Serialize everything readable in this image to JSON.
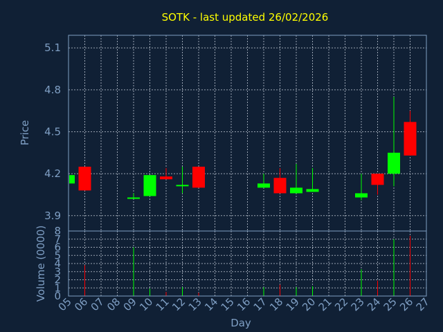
{
  "chart_data": {
    "type": "candlestick",
    "title": "SOTK - last updated 26/02/2026",
    "xlabel": "Day",
    "price_panel": {
      "ylabel": "Price",
      "ylim": [
        3.79,
        5.19
      ],
      "yticks": [
        "3.9",
        "4.2",
        "4.5",
        "4.8",
        "5.1"
      ]
    },
    "volume_panel": {
      "ylabel": "Volume (0000)",
      "ylim": [
        0,
        8
      ],
      "yticks": [
        "0",
        "1",
        "2",
        "3",
        "4",
        "5",
        "6",
        "7",
        "8"
      ]
    },
    "x_ticks": [
      "05",
      "06",
      "07",
      "08",
      "09",
      "10",
      "11",
      "12",
      "13",
      "14",
      "15",
      "16",
      "17",
      "18",
      "19",
      "20",
      "21",
      "22",
      "23",
      "24",
      "25",
      "26",
      "27"
    ],
    "grid": true,
    "colors": {
      "up": "#00ff00",
      "down": "#ff0000",
      "title": "#ffff00",
      "axis_text": "#7f9fc4",
      "background": "#102035"
    },
    "candles": [
      {
        "day": "05",
        "open": 4.13,
        "close": 4.19,
        "high": 4.19,
        "low": 4.13,
        "volume": 0.2
      },
      {
        "day": "06",
        "open": 4.25,
        "close": 4.08,
        "high": 4.25,
        "low": 4.08,
        "volume": 3.8
      },
      {
        "day": "09",
        "open": 4.02,
        "close": 4.03,
        "high": 4.06,
        "low": 4.02,
        "volume": 6.0
      },
      {
        "day": "10",
        "open": 4.04,
        "close": 4.19,
        "high": 4.19,
        "low": 4.04,
        "volume": 0.9
      },
      {
        "day": "11",
        "open": 4.18,
        "close": 4.16,
        "high": 4.24,
        "low": 4.16,
        "volume": 0.5
      },
      {
        "day": "12",
        "open": 4.11,
        "close": 4.12,
        "high": 4.25,
        "low": 4.06,
        "volume": 1.1
      },
      {
        "day": "13",
        "open": 4.25,
        "close": 4.1,
        "high": 4.25,
        "low": 4.1,
        "volume": 0.4
      },
      {
        "day": "17",
        "open": 4.1,
        "close": 4.13,
        "high": 4.2,
        "low": 4.1,
        "volume": 1.1
      },
      {
        "day": "18",
        "open": 4.17,
        "close": 4.06,
        "high": 4.24,
        "low": 4.06,
        "volume": 1.4
      },
      {
        "day": "19",
        "open": 4.06,
        "close": 4.1,
        "high": 4.27,
        "low": 4.06,
        "volume": 1.1
      },
      {
        "day": "20",
        "open": 4.07,
        "close": 4.09,
        "high": 4.24,
        "low": 4.07,
        "volume": 1.2
      },
      {
        "day": "23",
        "open": 4.03,
        "close": 4.06,
        "high": 4.2,
        "low": 4.01,
        "volume": 3.3
      },
      {
        "day": "24",
        "open": 4.2,
        "close": 4.12,
        "high": 4.2,
        "low": 4.05,
        "volume": 1.9
      },
      {
        "day": "25",
        "open": 4.2,
        "close": 4.35,
        "high": 4.75,
        "low": 4.11,
        "volume": 7.0
      },
      {
        "day": "26",
        "open": 4.57,
        "close": 4.33,
        "high": 4.65,
        "low": 4.33,
        "volume": 7.4
      }
    ]
  }
}
